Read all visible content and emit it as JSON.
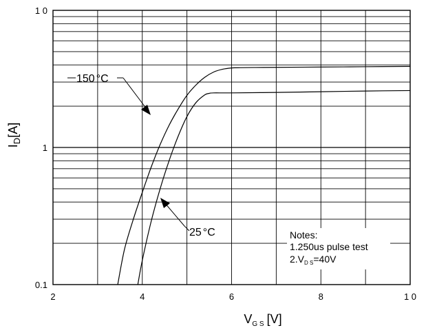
{
  "chart_data": {
    "type": "line",
    "title": "",
    "xlabel": "V_GS [V]",
    "xlabel_main": "V",
    "xlabel_sub": "G S",
    "xlabel_unit": "[V]",
    "ylabel": "I_D[A]",
    "ylabel_main": "I",
    "ylabel_sub": "D",
    "ylabel_unit": "[A]",
    "xlim": [
      2,
      10
    ],
    "ylim": [
      0.1,
      10
    ],
    "yscale": "log",
    "grid": true,
    "x_ticks": [
      {
        "value": 2,
        "label": "2"
      },
      {
        "value": 4,
        "label": "4"
      },
      {
        "value": 6,
        "label": "6"
      },
      {
        "value": 8,
        "label": "8"
      },
      {
        "value": 10,
        "label": "1 0"
      }
    ],
    "y_ticks": [
      {
        "value": 0.1,
        "label": "0.1"
      },
      {
        "value": 1,
        "label": "1"
      },
      {
        "value": 10,
        "label": "1 0"
      }
    ],
    "series": [
      {
        "name": "150°C",
        "x": [
          3.45,
          3.6,
          3.8,
          4.0,
          4.2,
          4.4,
          4.6,
          4.8,
          5.0,
          5.2,
          5.4,
          5.6,
          5.8,
          6.0,
          6.2,
          6.5,
          7.0,
          8.0,
          9.0,
          10.0
        ],
        "y": [
          0.1,
          0.18,
          0.3,
          0.47,
          0.72,
          1.05,
          1.45,
          1.9,
          2.4,
          2.85,
          3.25,
          3.55,
          3.72,
          3.8,
          3.82,
          3.83,
          3.84,
          3.86,
          3.88,
          3.9
        ]
      },
      {
        "name": "25°C",
        "x": [
          3.9,
          4.0,
          4.2,
          4.4,
          4.6,
          4.8,
          5.0,
          5.2,
          5.4,
          5.5,
          5.6,
          6.0,
          7.0,
          8.0,
          9.0,
          10.0
        ],
        "y": [
          0.1,
          0.15,
          0.29,
          0.5,
          0.8,
          1.2,
          1.68,
          2.12,
          2.42,
          2.48,
          2.5,
          2.5,
          2.52,
          2.55,
          2.58,
          2.6
        ]
      }
    ],
    "annotations": [
      {
        "label": "150°C",
        "label_main": "150",
        "label_deg": "°C",
        "series": "150°C"
      },
      {
        "label": "25°C",
        "label_main": "25",
        "label_deg": "°C",
        "series": "25°C"
      }
    ],
    "notes": {
      "title": "Notes:",
      "line1": "1.250us pulse test",
      "line2_prefix": "2.V",
      "line2_sub": "D S",
      "line2_suffix": "=40V"
    }
  }
}
